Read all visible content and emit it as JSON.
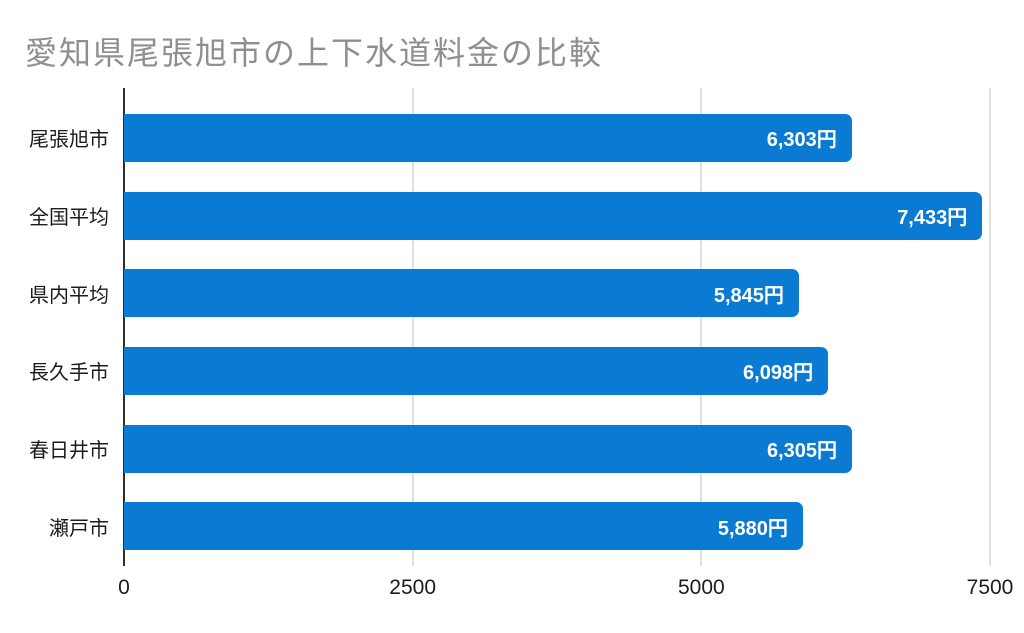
{
  "chart_data": {
    "type": "bar",
    "orientation": "horizontal",
    "title": "愛知県尾張旭市の上下水道料金の比較",
    "categories": [
      "尾張旭市",
      "全国平均",
      "県内平均",
      "長久手市",
      "春日井市",
      "瀬戸市"
    ],
    "values": [
      6303,
      7433,
      5845,
      6098,
      6305,
      5880
    ],
    "value_labels": [
      "6,303円",
      "7,433円",
      "5,845円",
      "6,098円",
      "6,305円",
      "5,880円"
    ],
    "x_ticks": [
      0,
      2500,
      5000,
      7500
    ],
    "x_tick_labels": [
      "0",
      "2500",
      "5000",
      "7500"
    ],
    "xlim": [
      0,
      7500
    ],
    "grid": true,
    "legend": false,
    "bar_color": "#0b7ad2",
    "title_color": "#8f8f8f",
    "value_label_color": "#ffffff"
  }
}
